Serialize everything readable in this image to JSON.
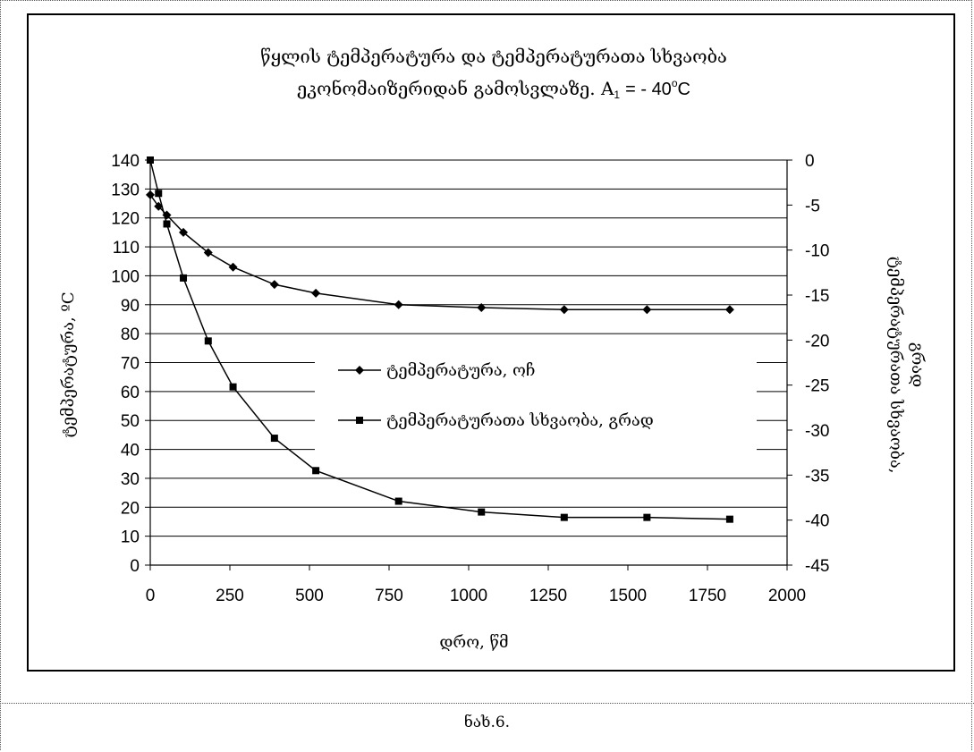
{
  "chart_data": {
    "type": "line",
    "title_line1": "წყლის ტემპერატურა და ტემპერატურათა სხვაობა",
    "title_line2": "ეკონომაიზერიდან გამოსვლაზე. A",
    "title_subscript": "1",
    "title_tail": "= - 40",
    "title_degree": "o",
    "title_unit": "C",
    "xlabel": "დრო, წმ",
    "ylabel_left": "ტემპერატურა, ºC",
    "ylabel_right_line1": "ტემპერატურათა სხვაობა,",
    "ylabel_right_line2": "გრად",
    "xlim": [
      0,
      2000
    ],
    "ylim_left": [
      0,
      140
    ],
    "ylim_right": [
      -45,
      0
    ],
    "x_ticks": [
      "0",
      "250",
      "500",
      "750",
      "1000",
      "1250",
      "1500",
      "1750",
      "2000"
    ],
    "y_left_ticks": [
      "0",
      "10",
      "20",
      "30",
      "40",
      "50",
      "60",
      "70",
      "80",
      "90",
      "100",
      "110",
      "120",
      "130",
      "140"
    ],
    "y_right_ticks": [
      "0",
      "-5",
      "-10",
      "-15",
      "-20",
      "-25",
      "-30",
      "-35",
      "-40",
      "-45"
    ],
    "grid": "horizontal",
    "legend_position": "center",
    "series": [
      {
        "name": "ტემპერატურა, ოჩ",
        "axis": "left",
        "marker": "diamond",
        "x": [
          0,
          26,
          52,
          104,
          182,
          260,
          390,
          520,
          780,
          1040,
          1300,
          1560,
          1820
        ],
        "y": [
          128,
          124,
          121,
          115,
          108,
          103,
          97,
          94,
          90,
          89,
          88.3,
          88.3,
          88.3
        ]
      },
      {
        "name": "ტემპერატურათა სხვაობა, გრად",
        "axis": "right",
        "marker": "square",
        "x": [
          0,
          26,
          52,
          104,
          182,
          260,
          390,
          520,
          780,
          1040,
          1300,
          1560,
          1820
        ],
        "y": [
          0,
          -3.7,
          -7.1,
          -13.1,
          -20.1,
          -25.2,
          -30.9,
          -34.5,
          -37.9,
          -39.1,
          -39.7,
          -39.7,
          -39.9
        ]
      }
    ]
  },
  "caption": "ნახ.6."
}
